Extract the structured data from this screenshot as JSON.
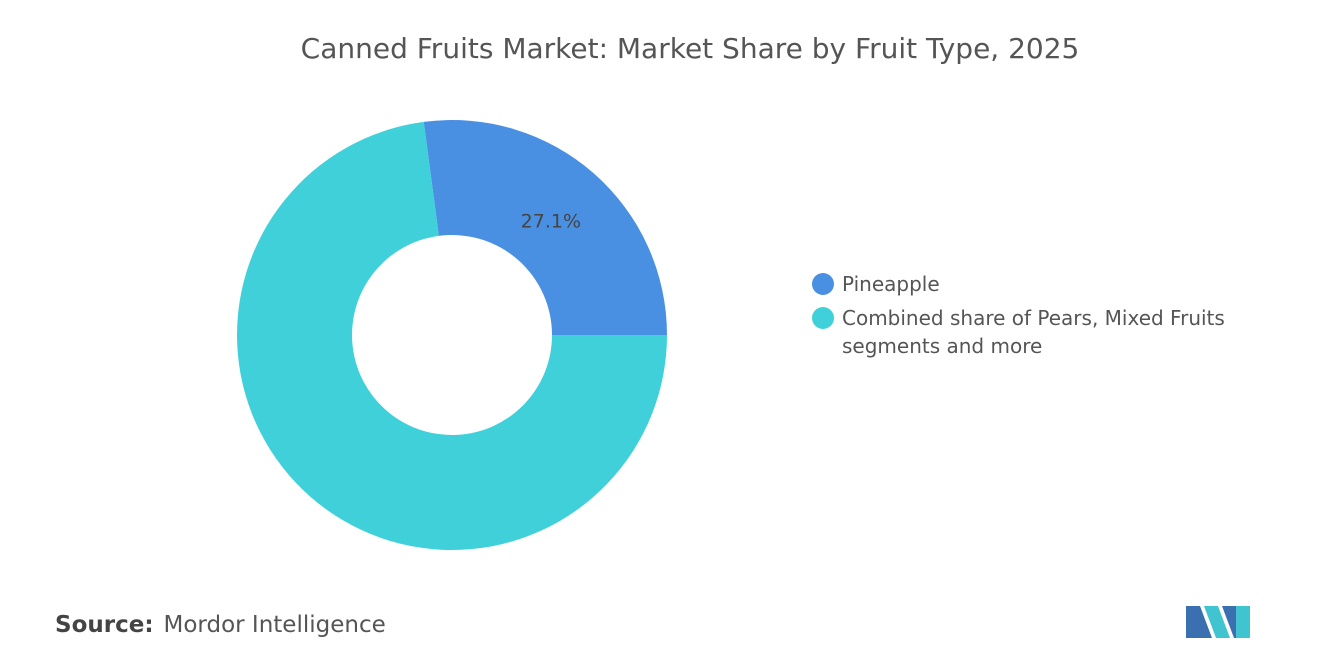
{
  "chart_data": {
    "type": "donut",
    "title": "Canned Fruits Market: Market Share by Fruit Type, 2025",
    "categories": [
      "Pineapple",
      "Combined share of Pears, Mixed Fruits segments and more"
    ],
    "values": [
      27.1,
      72.9
    ],
    "value_labels": [
      "27.1%",
      null
    ],
    "colors": [
      "#4a90e2",
      "#40d0d9"
    ],
    "source_label": "Source:",
    "source": "Mordor Intelligence"
  }
}
